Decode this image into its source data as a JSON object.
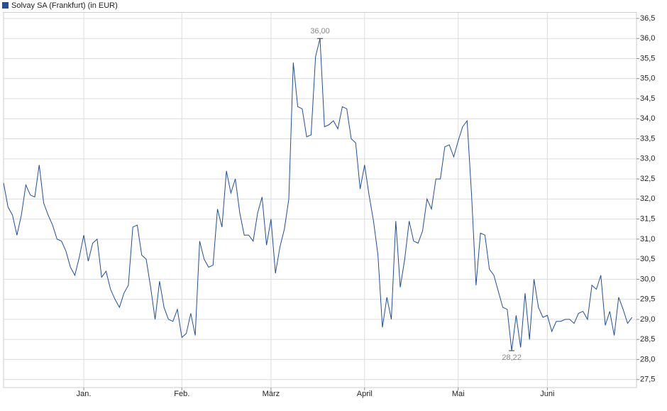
{
  "chart_data": {
    "type": "line",
    "series": [
      {
        "name": "Solvay SA (Frankfurt) (in EUR)",
        "color": "#1f4e9c",
        "values": [
          32.4,
          31.8,
          31.6,
          31.1,
          31.6,
          32.35,
          32.1,
          32.05,
          32.85,
          31.9,
          31.6,
          31.35,
          31.0,
          30.95,
          30.7,
          30.3,
          30.1,
          30.55,
          31.1,
          30.45,
          30.9,
          31.0,
          30.05,
          30.2,
          29.75,
          29.5,
          29.3,
          29.65,
          29.85,
          31.3,
          31.35,
          30.6,
          30.5,
          29.8,
          29.0,
          29.95,
          29.3,
          29.0,
          28.95,
          29.25,
          28.55,
          28.65,
          29.15,
          28.6,
          30.95,
          30.5,
          30.3,
          30.35,
          31.75,
          31.3,
          32.7,
          32.15,
          32.5,
          31.65,
          31.1,
          31.1,
          30.95,
          31.65,
          32.05,
          30.85,
          31.5,
          30.15,
          30.8,
          31.25,
          32.0,
          35.4,
          34.3,
          34.25,
          33.55,
          33.6,
          35.55,
          36.0,
          33.8,
          33.85,
          33.95,
          33.75,
          34.3,
          34.25,
          33.5,
          33.4,
          32.25,
          32.85,
          32.1,
          31.45,
          30.6,
          28.8,
          29.55,
          29.0,
          31.45,
          29.8,
          30.5,
          31.45,
          30.95,
          30.9,
          31.2,
          32.0,
          31.75,
          32.5,
          32.5,
          33.3,
          33.35,
          33.05,
          33.45,
          33.8,
          33.95,
          32.1,
          29.85,
          31.15,
          31.1,
          30.25,
          30.1,
          29.7,
          29.3,
          29.25,
          28.22,
          29.1,
          28.3,
          29.65,
          28.5,
          30.0,
          29.3,
          29.05,
          29.1,
          28.7,
          28.95,
          28.95,
          29.0,
          29.0,
          28.9,
          29.15,
          29.2,
          29.0,
          29.85,
          29.75,
          30.1,
          28.85,
          29.2,
          28.6,
          29.55,
          29.25,
          28.9,
          29.05
        ]
      }
    ],
    "max_label": "36,00",
    "min_label": "28,22",
    "xlim": [
      0,
      142
    ],
    "xticks": [
      {
        "value": 18,
        "label": "Jan."
      },
      {
        "value": 40,
        "label": "Feb."
      },
      {
        "value": 60,
        "label": "März"
      },
      {
        "value": 81,
        "label": "April"
      },
      {
        "value": 102,
        "label": "Mai"
      },
      {
        "value": 122,
        "label": "Juni"
      }
    ],
    "ylim": [
      27.3,
      36.65
    ],
    "yticks": [
      {
        "value": 27.5,
        "label": "27,5"
      },
      {
        "value": 28,
        "label": "28,0"
      },
      {
        "value": 28.5,
        "label": "28,5"
      },
      {
        "value": 29,
        "label": "29,0"
      },
      {
        "value": 29.5,
        "label": "29,5"
      },
      {
        "value": 30,
        "label": "30,0"
      },
      {
        "value": 30.5,
        "label": "30,5"
      },
      {
        "value": 31,
        "label": "31,0"
      },
      {
        "value": 31.5,
        "label": "31,5"
      },
      {
        "value": 32,
        "label": "32,0"
      },
      {
        "value": 32.5,
        "label": "32,5"
      },
      {
        "value": 33,
        "label": "33,0"
      },
      {
        "value": 33.5,
        "label": "33,5"
      },
      {
        "value": 34,
        "label": "34,0"
      },
      {
        "value": 34.5,
        "label": "34,5"
      },
      {
        "value": 35,
        "label": "35,0"
      },
      {
        "value": 35.5,
        "label": "35,5"
      },
      {
        "value": 36,
        "label": "36,0"
      },
      {
        "value": 36.5,
        "label": "36,5"
      }
    ],
    "grid": true
  }
}
